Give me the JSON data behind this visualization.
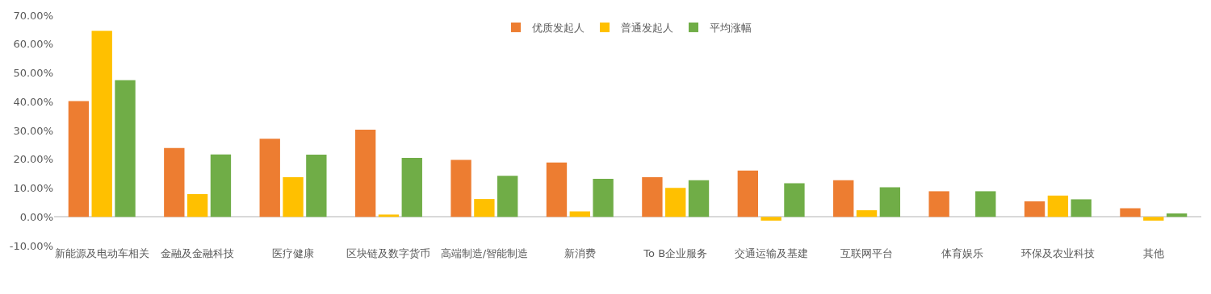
{
  "chart_data": {
    "type": "bar",
    "categories": [
      "新能源及电动车相关",
      "金融及金融科技",
      "医疗健康",
      "区块链及数字货币",
      "高端制造/智能制造",
      "新消费",
      "To B企业服务",
      "交通运输及基建",
      "互联网平台",
      "体育娱乐",
      "环保及农业科技",
      "其他"
    ],
    "series": [
      {
        "name": "优质发起人",
        "color": "#ed7d31",
        "values": [
          40.2,
          23.9,
          27.1,
          30.3,
          19.8,
          18.9,
          13.8,
          16.1,
          12.7,
          8.9,
          5.4,
          3.0
        ]
      },
      {
        "name": "普通发起人",
        "color": "#ffc000",
        "values": [
          64.6,
          7.9,
          13.8,
          0.8,
          6.2,
          1.9,
          10.1,
          -1.3,
          2.3,
          0,
          7.4,
          -1.3
        ]
      },
      {
        "name": "平均涨幅",
        "color": "#70ad47",
        "values": [
          47.5,
          21.7,
          21.6,
          20.5,
          14.3,
          13.2,
          12.7,
          11.7,
          10.3,
          8.9,
          6.1,
          1.2
        ]
      }
    ],
    "ylim": [
      -10,
      70
    ],
    "yticks": [
      {
        "value": -10,
        "label": "-10.00%"
      },
      {
        "value": 0,
        "label": "0.00%"
      },
      {
        "value": 10,
        "label": "10.00%"
      },
      {
        "value": 20,
        "label": "20.00%"
      },
      {
        "value": 30,
        "label": "30.00%"
      },
      {
        "value": 40,
        "label": "40.00%"
      },
      {
        "value": 50,
        "label": "50.00%"
      },
      {
        "value": 60,
        "label": "60.00%"
      },
      {
        "value": 70,
        "label": "70.00%"
      }
    ],
    "legend": "top"
  }
}
